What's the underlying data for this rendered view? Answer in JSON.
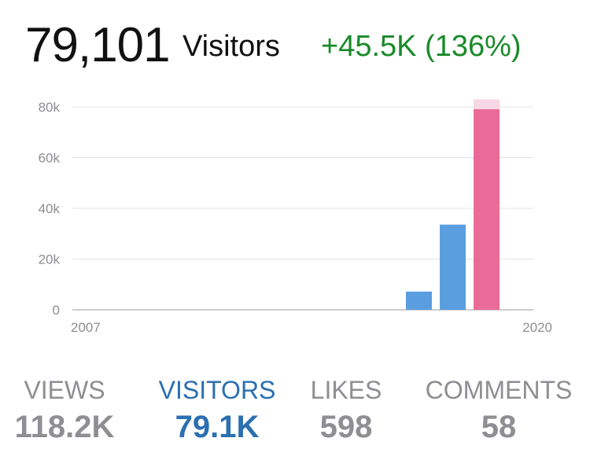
{
  "summary": {
    "count": "79,101",
    "label": "Visitors",
    "change": "+45.5K (136%)"
  },
  "colors": {
    "prior_bar": "#5a9ee0",
    "current_bar": "#ea6b98",
    "current_bar_light": "#f8d8e4",
    "change_positive": "#1a8a2a",
    "active_tab": "#2b6fb0",
    "inactive_tab": "#8e8e93"
  },
  "chart_data": {
    "type": "bar",
    "x_range_labels": [
      "2007",
      "2020"
    ],
    "ylim": [
      0,
      80000
    ],
    "yticks": [
      0,
      20000,
      40000,
      60000,
      80000
    ],
    "ytick_labels": [
      "0",
      "20k",
      "40k",
      "60k",
      "80k"
    ],
    "grid": true,
    "bars": [
      {
        "value": 7200,
        "period": "prior"
      },
      {
        "value": 33600,
        "period": "prior"
      },
      {
        "value": 79101,
        "projected": 83000,
        "period": "current"
      }
    ]
  },
  "stats": [
    {
      "label": "VIEWS",
      "value": "118.2K",
      "active": false
    },
    {
      "label": "VISITORS",
      "value": "79.1K",
      "active": true
    },
    {
      "label": "LIKES",
      "value": "598",
      "active": false
    },
    {
      "label": "COMMENTS",
      "value": "58",
      "active": false
    }
  ]
}
